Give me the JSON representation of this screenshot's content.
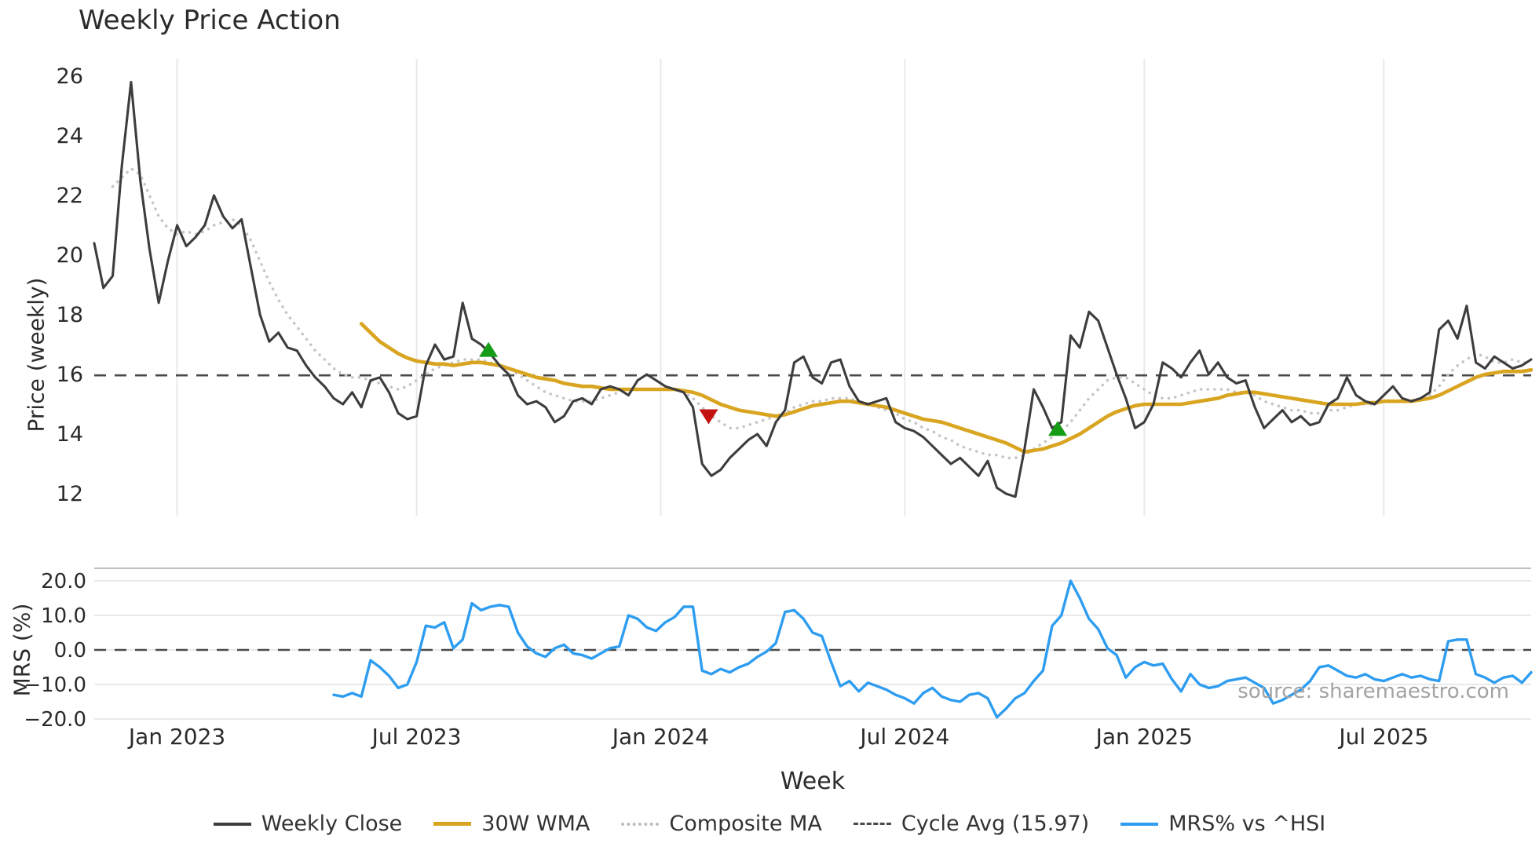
{
  "title": "Weekly Price Action",
  "watermark": "source: sharemaestro.com",
  "axes": {
    "price_label": "Price (weekly)",
    "mrs_label": "MRS (%)",
    "x_label": "Week"
  },
  "legend": {
    "items": [
      {
        "label": "Weekly Close",
        "type": "solid",
        "color": "#3d3d3d",
        "width": 4
      },
      {
        "label": "30W WMA",
        "type": "solid",
        "color": "#d9a521",
        "width": 5
      },
      {
        "label": "Composite MA",
        "type": "dotted",
        "color": "#bcbcbf",
        "width": 4
      },
      {
        "label": "Cycle Avg (15.97)",
        "type": "dashed",
        "color": "#4a4a4a",
        "width": 3
      },
      {
        "label": "MRS% vs ^HSI",
        "type": "solid",
        "color": "#2e9df0",
        "width": 4
      }
    ]
  },
  "chart_data": [
    {
      "type": "line",
      "panel": "price",
      "title": "Weekly Price Action",
      "ylabel": "Price (weekly)",
      "ylim": [
        12,
        26
      ],
      "y_ticks": [
        26,
        24,
        22,
        20,
        18,
        16,
        14,
        12
      ],
      "x_ticks": [
        {
          "week": 9,
          "label": "Jan 2023"
        },
        {
          "week": 35,
          "label": "Jul 2023"
        },
        {
          "week": 61.5,
          "label": "Jan 2024"
        },
        {
          "week": 88,
          "label": "Jul 2024"
        },
        {
          "week": 114,
          "label": "Jan 2025"
        },
        {
          "week": 140,
          "label": "Jul 2025"
        }
      ],
      "week_domain": [
        0,
        156
      ],
      "cycle_avg": 15.97,
      "grid": "vertical",
      "series": [
        {
          "name": "Weekly Close",
          "color": "#3d3d3d",
          "style": "solid",
          "start_week": 0,
          "values": [
            20.4,
            18.9,
            19.3,
            23.0,
            25.8,
            22.5,
            20.2,
            18.4,
            19.8,
            21.0,
            20.3,
            20.6,
            21.0,
            22.0,
            21.3,
            20.9,
            21.2,
            19.6,
            18.0,
            17.1,
            17.4,
            16.9,
            16.8,
            16.3,
            15.9,
            15.6,
            15.2,
            15.0,
            15.4,
            14.9,
            15.8,
            15.9,
            15.4,
            14.7,
            14.5,
            14.6,
            16.3,
            17.0,
            16.5,
            16.6,
            18.4,
            17.2,
            17.0,
            16.7,
            16.3,
            16.0,
            15.3,
            15.0,
            15.1,
            14.9,
            14.4,
            14.6,
            15.1,
            15.2,
            15.0,
            15.5,
            15.6,
            15.5,
            15.3,
            15.8,
            16.0,
            15.8,
            15.6,
            15.5,
            15.4,
            14.9,
            13.0,
            12.6,
            12.8,
            13.2,
            13.5,
            13.8,
            14.0,
            13.6,
            14.4,
            14.8,
            16.4,
            16.6,
            15.9,
            15.7,
            16.4,
            16.5,
            15.6,
            15.1,
            15.0,
            15.1,
            15.2,
            14.4,
            14.2,
            14.1,
            13.9,
            13.6,
            13.3,
            13.0,
            13.2,
            12.9,
            12.6,
            13.1,
            12.2,
            12.0,
            11.9,
            13.5,
            15.5,
            14.9,
            14.2,
            14.4,
            17.3,
            16.9,
            18.1,
            17.8,
            16.9,
            16.0,
            15.2,
            14.2,
            14.4,
            15.0,
            16.4,
            16.2,
            15.9,
            16.4,
            16.8,
            16.0,
            16.4,
            15.9,
            15.7,
            15.8,
            14.9,
            14.2,
            14.5,
            14.8,
            14.4,
            14.6,
            14.3,
            14.4,
            15.0,
            15.2,
            15.9,
            15.3,
            15.1,
            15.0,
            15.3,
            15.6,
            15.2,
            15.1,
            15.2,
            15.4,
            17.5,
            17.8,
            17.2,
            18.3,
            16.4,
            16.2,
            16.6,
            16.4,
            16.2,
            16.3,
            16.5
          ]
        },
        {
          "name": "30W WMA",
          "color": "#d9a521",
          "style": "solid",
          "start_week": 29,
          "values": [
            17.7,
            17.4,
            17.1,
            16.9,
            16.7,
            16.55,
            16.45,
            16.4,
            16.35,
            16.35,
            16.3,
            16.35,
            16.4,
            16.4,
            16.35,
            16.3,
            16.2,
            16.1,
            16.0,
            15.9,
            15.85,
            15.8,
            15.7,
            15.65,
            15.6,
            15.6,
            15.55,
            15.5,
            15.5,
            15.5,
            15.5,
            15.5,
            15.5,
            15.5,
            15.5,
            15.45,
            15.4,
            15.3,
            15.15,
            15.0,
            14.9,
            14.8,
            14.75,
            14.7,
            14.65,
            14.6,
            14.65,
            14.75,
            14.85,
            14.95,
            15.0,
            15.05,
            15.1,
            15.1,
            15.05,
            15.0,
            14.95,
            14.9,
            14.8,
            14.7,
            14.6,
            14.5,
            14.45,
            14.4,
            14.3,
            14.2,
            14.1,
            14.0,
            13.9,
            13.8,
            13.7,
            13.55,
            13.4,
            13.45,
            13.5,
            13.6,
            13.7,
            13.85,
            14.0,
            14.2,
            14.4,
            14.6,
            14.75,
            14.85,
            14.95,
            15.0,
            15.0,
            15.0,
            15.0,
            15.0,
            15.05,
            15.1,
            15.15,
            15.2,
            15.3,
            15.35,
            15.4,
            15.4,
            15.35,
            15.3,
            15.25,
            15.2,
            15.15,
            15.1,
            15.05,
            15.0,
            15.0,
            15.0,
            15.0,
            15.05,
            15.05,
            15.1,
            15.1,
            15.1,
            15.1,
            15.15,
            15.2,
            15.3,
            15.45,
            15.6,
            15.75,
            15.9,
            16.0,
            16.05,
            16.1,
            16.1,
            16.1,
            16.15
          ]
        },
        {
          "name": "Composite MA",
          "color": "#c6c6c9",
          "style": "dotted",
          "start_week": 2,
          "values": [
            22.3,
            22.6,
            22.9,
            22.7,
            22.0,
            21.3,
            20.9,
            20.7,
            20.8,
            20.7,
            20.8,
            21.0,
            21.1,
            21.2,
            21.0,
            20.5,
            19.8,
            19.1,
            18.5,
            18.0,
            17.6,
            17.2,
            16.8,
            16.5,
            16.2,
            16.0,
            15.9,
            15.9,
            15.8,
            15.7,
            15.6,
            15.5,
            15.6,
            15.8,
            16.0,
            16.2,
            16.3,
            16.4,
            16.5,
            16.5,
            16.5,
            16.4,
            16.3,
            16.2,
            16.0,
            15.8,
            15.6,
            15.4,
            15.3,
            15.2,
            15.1,
            15.1,
            15.1,
            15.2,
            15.3,
            15.4,
            15.5,
            15.5,
            15.5,
            15.5,
            15.5,
            15.5,
            15.4,
            15.2,
            14.9,
            14.6,
            14.4,
            14.2,
            14.2,
            14.3,
            14.4,
            14.5,
            14.6,
            14.7,
            14.9,
            15.0,
            15.1,
            15.1,
            15.2,
            15.2,
            15.2,
            15.1,
            15.0,
            14.9,
            14.8,
            14.7,
            14.5,
            14.4,
            14.2,
            14.1,
            13.9,
            13.8,
            13.6,
            13.5,
            13.4,
            13.3,
            13.3,
            13.2,
            13.2,
            13.3,
            13.5,
            13.7,
            13.9,
            14.1,
            14.4,
            14.8,
            15.2,
            15.5,
            15.8,
            15.9,
            15.9,
            15.7,
            15.5,
            15.3,
            15.2,
            15.2,
            15.3,
            15.4,
            15.5,
            15.5,
            15.5,
            15.5,
            15.4,
            15.4,
            15.3,
            15.1,
            15.0,
            14.9,
            14.8,
            14.8,
            14.7,
            14.7,
            14.8,
            14.8,
            14.9,
            15.0,
            15.0,
            15.0,
            15.1,
            15.1,
            15.1,
            15.1,
            15.2,
            15.3,
            15.6,
            16.0,
            16.3,
            16.5,
            16.7,
            16.6,
            16.4,
            16.4,
            16.5,
            16.4,
            16.4
          ]
        }
      ],
      "markers": [
        {
          "week": 42.8,
          "price": 16.8,
          "dir": "up",
          "color": "#169c16"
        },
        {
          "week": 66.7,
          "price": 14.62,
          "dir": "down",
          "color": "#c41212"
        },
        {
          "week": 104.6,
          "price": 14.15,
          "dir": "up",
          "color": "#169c16"
        }
      ]
    },
    {
      "type": "line",
      "panel": "mrs",
      "ylabel": "MRS (%)",
      "xlabel": "Week",
      "ylim": [
        -22,
        22
      ],
      "y_ticks": [
        {
          "value": 20,
          "label": "20.0"
        },
        {
          "value": 10,
          "label": "10.0"
        },
        {
          "value": 0,
          "label": "0.0"
        },
        {
          "value": -10,
          "label": "−10.0"
        },
        {
          "value": -20,
          "label": "−20.0"
        }
      ],
      "zero_line": 0,
      "grid": "horizontal",
      "series": [
        {
          "name": "MRS% vs ^HSI",
          "color": "#2e9df0",
          "style": "solid",
          "start_week": 26,
          "values": [
            -13,
            -13.5,
            -12.5,
            -13.5,
            -3,
            -5,
            -7.5,
            -11,
            -10,
            -3.5,
            7,
            6.5,
            8,
            0.5,
            3,
            13.5,
            11.5,
            12.5,
            13,
            12.5,
            5,
            1,
            -1,
            -2,
            0.5,
            1.5,
            -1,
            -1.5,
            -2.5,
            -1,
            0.5,
            1,
            10,
            9,
            6.5,
            5.5,
            8,
            9.5,
            12.5,
            12.5,
            -6,
            -7,
            -5.5,
            -6.5,
            -5,
            -4,
            -2,
            -0.5,
            2,
            11,
            11.5,
            9,
            5,
            4,
            -3.5,
            -10.5,
            -9,
            -12,
            -9.5,
            -10.5,
            -11.5,
            -13,
            -14,
            -15.5,
            -12.5,
            -11,
            -13.5,
            -14.5,
            -15,
            -13,
            -12.5,
            -14,
            -19.5,
            -17,
            -14,
            -12.5,
            -9,
            -6,
            7,
            10,
            20,
            15,
            9,
            6,
            0.5,
            -1.5,
            -8,
            -5,
            -3.5,
            -4.5,
            -4,
            -8.5,
            -12,
            -7,
            -10,
            -11,
            -10.5,
            -9,
            -8.5,
            -8,
            -9.5,
            -11,
            -15.5,
            -14.5,
            -13,
            -11.5,
            -9,
            -5,
            -4.5,
            -6,
            -7.5,
            -8,
            -7,
            -8.5,
            -9,
            -8,
            -7,
            -8,
            -7.5,
            -8.5,
            -9,
            2.5,
            3,
            3,
            -7,
            -8,
            -9.5,
            -8,
            -7.5,
            -9.5,
            -6.5
          ]
        }
      ]
    }
  ]
}
